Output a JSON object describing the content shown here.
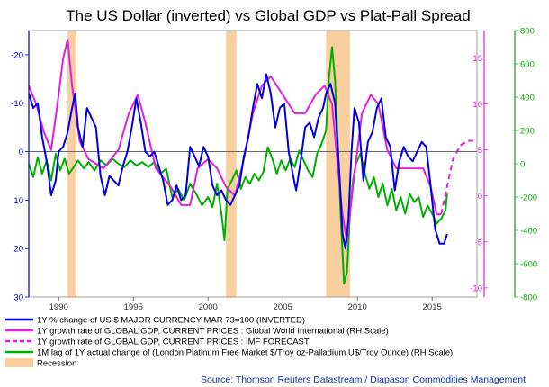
{
  "chart_data": {
    "type": "line",
    "title": "The US Dollar (inverted) vs Global GDP vs Plat-Pall Spread",
    "source": "Source: Thomson Reuters Datastream / Diapason Commodities Management",
    "x_range": [
      1988,
      2018
    ],
    "x_ticks": [
      1990,
      1995,
      2000,
      2005,
      2010,
      2015
    ],
    "left_axis": {
      "range_inverted": [
        -25,
        30
      ],
      "ticks": [
        -20,
        -10,
        0,
        10,
        20,
        30
      ],
      "tick_labels": [
        "-20",
        "-10",
        "0",
        "10",
        "20",
        "30"
      ],
      "color": "#0000cc"
    },
    "rh_axis_gdp": {
      "range": [
        -11,
        18
      ],
      "ticks": [
        -10,
        -5,
        0,
        5,
        10,
        15
      ],
      "tick_labels": [
        "-10",
        "-5",
        "0",
        "5",
        "10",
        "15"
      ],
      "color": "#e020e0"
    },
    "rh_axis_spread": {
      "range": [
        -800,
        800
      ],
      "ticks": [
        -800,
        -600,
        -400,
        -200,
        0,
        200,
        400,
        600,
        800
      ],
      "tick_labels": [
        "-800",
        "-600",
        "-400",
        "-200",
        "0",
        "200",
        "400",
        "600",
        "800"
      ],
      "color": "#00b000"
    },
    "recessions": [
      [
        1990.6,
        1991.2
      ],
      [
        2001.2,
        2001.9
      ],
      [
        2007.9,
        2009.5
      ]
    ],
    "recession_color": "#f9cfa0",
    "series": [
      {
        "name": "1Y % change of US $ MAJOR CURRENCY MAR 73=100 (INVERTED)",
        "color": "#0000dd",
        "axis": "left",
        "points": [
          [
            1988.0,
            -12
          ],
          [
            1988.3,
            -9
          ],
          [
            1988.6,
            -10
          ],
          [
            1988.9,
            -3
          ],
          [
            1989.2,
            2
          ],
          [
            1989.5,
            9
          ],
          [
            1989.8,
            6
          ],
          [
            1990.0,
            0
          ],
          [
            1990.3,
            -1
          ],
          [
            1990.6,
            -4
          ],
          [
            1990.9,
            -9
          ],
          [
            1991.1,
            -12
          ],
          [
            1991.3,
            -5
          ],
          [
            1991.6,
            -1
          ],
          [
            1991.9,
            -9
          ],
          [
            1992.2,
            -7
          ],
          [
            1992.5,
            -5
          ],
          [
            1992.8,
            5
          ],
          [
            1993.1,
            9
          ],
          [
            1993.4,
            5
          ],
          [
            1993.7,
            6
          ],
          [
            1994.0,
            7
          ],
          [
            1994.3,
            3
          ],
          [
            1994.6,
            0
          ],
          [
            1994.9,
            -5
          ],
          [
            1995.2,
            -11
          ],
          [
            1995.5,
            -6
          ],
          [
            1995.8,
            0
          ],
          [
            1996.1,
            1
          ],
          [
            1996.4,
            0
          ],
          [
            1996.7,
            3
          ],
          [
            1997.0,
            6
          ],
          [
            1997.3,
            11
          ],
          [
            1997.6,
            10
          ],
          [
            1997.9,
            7
          ],
          [
            1998.2,
            10
          ],
          [
            1998.5,
            9
          ],
          [
            1998.8,
            -1
          ],
          [
            1999.1,
            1
          ],
          [
            1999.4,
            3
          ],
          [
            1999.7,
            -1
          ],
          [
            2000.0,
            1
          ],
          [
            2000.3,
            7
          ],
          [
            2000.6,
            9
          ],
          [
            2000.9,
            8
          ],
          [
            2001.2,
            10
          ],
          [
            2001.5,
            11
          ],
          [
            2001.8,
            9
          ],
          [
            2002.1,
            7
          ],
          [
            2002.4,
            1
          ],
          [
            2002.7,
            -3
          ],
          [
            2003.0,
            -9
          ],
          [
            2003.3,
            -14
          ],
          [
            2003.6,
            -11
          ],
          [
            2003.9,
            -16
          ],
          [
            2004.2,
            -12
          ],
          [
            2004.5,
            -5
          ],
          [
            2004.8,
            -9
          ],
          [
            2005.1,
            -10
          ],
          [
            2005.4,
            0
          ],
          [
            2005.7,
            5
          ],
          [
            2005.9,
            8
          ],
          [
            2006.2,
            2
          ],
          [
            2006.5,
            -5
          ],
          [
            2006.8,
            -6
          ],
          [
            2007.1,
            -3
          ],
          [
            2007.4,
            -7
          ],
          [
            2007.7,
            -9
          ],
          [
            2007.9,
            -12
          ],
          [
            2008.2,
            -14
          ],
          [
            2008.5,
            -10
          ],
          [
            2008.8,
            5
          ],
          [
            2009.0,
            17
          ],
          [
            2009.2,
            20
          ],
          [
            2009.4,
            14
          ],
          [
            2009.6,
            0
          ],
          [
            2009.8,
            -9
          ],
          [
            2010.1,
            -6
          ],
          [
            2010.4,
            6
          ],
          [
            2010.7,
            -2
          ],
          [
            2011.0,
            -4
          ],
          [
            2011.3,
            -9
          ],
          [
            2011.6,
            -11
          ],
          [
            2011.9,
            -3
          ],
          [
            2012.2,
            -1
          ],
          [
            2012.5,
            8
          ],
          [
            2012.8,
            2
          ],
          [
            2013.1,
            -1
          ],
          [
            2013.4,
            1
          ],
          [
            2013.7,
            2
          ],
          [
            2014.0,
            0
          ],
          [
            2014.3,
            -2
          ],
          [
            2014.6,
            -1
          ],
          [
            2014.9,
            7
          ],
          [
            2015.2,
            16
          ],
          [
            2015.5,
            19
          ],
          [
            2015.8,
            19
          ],
          [
            2016.0,
            17
          ]
        ]
      },
      {
        "name": "1Y growth rate of GLOBAL GDP, CURRENT PRICES : Global World International (RH Scale)",
        "color": "#e020e0",
        "axis": "rh_gdp",
        "points": [
          [
            1988.0,
            12
          ],
          [
            1988.5,
            10
          ],
          [
            1989.0,
            7
          ],
          [
            1989.5,
            5
          ],
          [
            1990.0,
            11
          ],
          [
            1990.3,
            15
          ],
          [
            1990.6,
            17
          ],
          [
            1990.9,
            12
          ],
          [
            1991.4,
            6
          ],
          [
            1992.0,
            4
          ],
          [
            1993.0,
            3
          ],
          [
            1994.0,
            5
          ],
          [
            1994.7,
            9
          ],
          [
            1995.3,
            11
          ],
          [
            1995.8,
            8
          ],
          [
            1996.5,
            3
          ],
          [
            1997.5,
            1
          ],
          [
            1998.2,
            -1
          ],
          [
            1998.8,
            -1
          ],
          [
            1999.3,
            3
          ],
          [
            2000.0,
            4
          ],
          [
            2000.6,
            3
          ],
          [
            2001.2,
            1
          ],
          [
            2001.8,
            0
          ],
          [
            2002.4,
            4
          ],
          [
            2003.0,
            9
          ],
          [
            2003.6,
            12
          ],
          [
            2004.2,
            13
          ],
          [
            2005.0,
            11
          ],
          [
            2005.8,
            9
          ],
          [
            2006.5,
            9
          ],
          [
            2007.2,
            11
          ],
          [
            2007.8,
            12
          ],
          [
            2008.3,
            10
          ],
          [
            2008.7,
            3
          ],
          [
            2009.0,
            -2
          ],
          [
            2009.3,
            -5
          ],
          [
            2009.7,
            1
          ],
          [
            2010.3,
            9
          ],
          [
            2010.9,
            11
          ],
          [
            2011.4,
            10
          ],
          [
            2012.0,
            5
          ],
          [
            2012.6,
            3
          ],
          [
            2013.2,
            3
          ],
          [
            2013.8,
            3
          ],
          [
            2014.4,
            3
          ],
          [
            2014.9,
            1
          ],
          [
            2015.3,
            -2
          ],
          [
            2015.6,
            -2
          ]
        ]
      },
      {
        "name": "1Y growth rate of GLOBAL GDP, CURRENT PRICES : IMF FORECAST",
        "color": "#e020e0",
        "axis": "rh_gdp",
        "dashed": true,
        "points": [
          [
            2015.6,
            -2
          ],
          [
            2016.0,
            1
          ],
          [
            2016.4,
            4
          ],
          [
            2016.9,
            5.5
          ],
          [
            2017.4,
            6
          ],
          [
            2017.9,
            6
          ]
        ]
      },
      {
        "name": "1M lag of 1Y actual change of (London Platinum Free Market $/Troy oz-Palladium U$/Troy Ounce) (RH Scale)",
        "color": "#00b000",
        "axis": "rh_spread",
        "points": [
          [
            1988.0,
            0
          ],
          [
            1988.3,
            -80
          ],
          [
            1988.6,
            40
          ],
          [
            1988.9,
            -60
          ],
          [
            1989.2,
            20
          ],
          [
            1989.5,
            -100
          ],
          [
            1989.8,
            60
          ],
          [
            1990.1,
            -40
          ],
          [
            1990.4,
            30
          ],
          [
            1990.7,
            -60
          ],
          [
            1991.0,
            -20
          ],
          [
            1991.3,
            20
          ],
          [
            1991.7,
            -30
          ],
          [
            1992.0,
            10
          ],
          [
            1992.4,
            -40
          ],
          [
            1992.8,
            20
          ],
          [
            1993.2,
            -10
          ],
          [
            1993.6,
            30
          ],
          [
            1994.0,
            0
          ],
          [
            1994.4,
            -20
          ],
          [
            1994.8,
            20
          ],
          [
            1995.2,
            -10
          ],
          [
            1995.6,
            10
          ],
          [
            1996.0,
            -20
          ],
          [
            1996.4,
            10
          ],
          [
            1996.8,
            -60
          ],
          [
            1997.2,
            -30
          ],
          [
            1997.6,
            -200
          ],
          [
            1998.0,
            -150
          ],
          [
            1998.4,
            -220
          ],
          [
            1998.8,
            -120
          ],
          [
            1999.2,
            -180
          ],
          [
            1999.6,
            -250
          ],
          [
            2000.0,
            -200
          ],
          [
            2000.3,
            -260
          ],
          [
            2000.6,
            -120
          ],
          [
            2000.9,
            -300
          ],
          [
            2001.1,
            -460
          ],
          [
            2001.3,
            -150
          ],
          [
            2001.6,
            -100
          ],
          [
            2001.9,
            -40
          ],
          [
            2002.2,
            -150
          ],
          [
            2002.5,
            -80
          ],
          [
            2002.8,
            -120
          ],
          [
            2003.1,
            -60
          ],
          [
            2003.4,
            -100
          ],
          [
            2003.7,
            -50
          ],
          [
            2004.0,
            100
          ],
          [
            2004.3,
            30
          ],
          [
            2004.6,
            -60
          ],
          [
            2004.9,
            20
          ],
          [
            2005.2,
            -40
          ],
          [
            2005.5,
            30
          ],
          [
            2005.8,
            -20
          ],
          [
            2006.1,
            80
          ],
          [
            2006.4,
            20
          ],
          [
            2006.7,
            -40
          ],
          [
            2007.0,
            -80
          ],
          [
            2007.3,
            60
          ],
          [
            2007.6,
            120
          ],
          [
            2007.9,
            200
          ],
          [
            2008.1,
            520
          ],
          [
            2008.3,
            700
          ],
          [
            2008.5,
            500
          ],
          [
            2008.7,
            100
          ],
          [
            2008.9,
            -350
          ],
          [
            2009.1,
            -720
          ],
          [
            2009.3,
            -650
          ],
          [
            2009.5,
            -300
          ],
          [
            2009.7,
            -100
          ],
          [
            2009.9,
            0
          ],
          [
            2010.2,
            60
          ],
          [
            2010.5,
            -60
          ],
          [
            2010.8,
            -150
          ],
          [
            2011.1,
            -80
          ],
          [
            2011.4,
            -200
          ],
          [
            2011.7,
            -120
          ],
          [
            2012.0,
            -250
          ],
          [
            2012.3,
            -150
          ],
          [
            2012.6,
            -280
          ],
          [
            2012.9,
            -200
          ],
          [
            2013.2,
            -300
          ],
          [
            2013.5,
            -180
          ],
          [
            2013.8,
            -230
          ],
          [
            2014.1,
            -200
          ],
          [
            2014.4,
            -320
          ],
          [
            2014.7,
            -250
          ],
          [
            2015.0,
            -300
          ],
          [
            2015.3,
            -360
          ],
          [
            2015.6,
            -330
          ],
          [
            2015.9,
            -280
          ],
          [
            2016.0,
            -180
          ]
        ]
      }
    ],
    "legend_extra": {
      "name": "Recession"
    }
  }
}
